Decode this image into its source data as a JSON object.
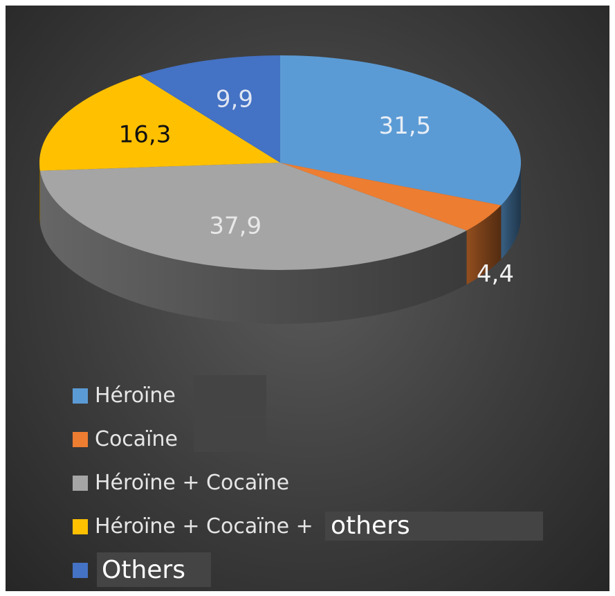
{
  "chart_data": {
    "type": "pie",
    "style": "3d",
    "labels": [
      "Héroïne",
      "Cocaïne",
      "Héroïne + Cocaïne",
      "Héroïne + Cocaïne + ",
      "Others"
    ],
    "label_suffix": [
      "",
      "",
      "",
      "others",
      ""
    ],
    "values": [
      31.5,
      4.4,
      37.9,
      16.3,
      9.9
    ],
    "value_labels": [
      "31,5",
      "4,4",
      "37,9",
      "16,3",
      "9,9"
    ],
    "colors": [
      "#5b9bd5",
      "#ed7d31",
      "#a5a5a5",
      "#ffc000",
      "#4472c4"
    ],
    "label_colors": [
      "#e8eef6",
      "#f2f2f2",
      "#e8e8e8",
      "#111111",
      "#e0e6f2"
    ],
    "legend_position": "bottom-left",
    "start": "top, clockwise"
  }
}
